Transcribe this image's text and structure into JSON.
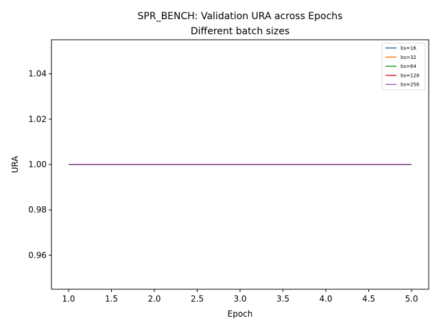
{
  "chart_data": {
    "type": "line",
    "title": "SPR_BENCH: Validation URA across Epochs",
    "subtitle": "Different batch sizes",
    "xlabel": "Epoch",
    "ylabel": "URA",
    "xlim": [
      0.8,
      5.2
    ],
    "ylim": [
      0.945,
      1.055
    ],
    "xticks": [
      1.0,
      1.5,
      2.0,
      2.5,
      3.0,
      3.5,
      4.0,
      4.5,
      5.0
    ],
    "xtick_labels": [
      "1.0",
      "1.5",
      "2.0",
      "2.5",
      "3.0",
      "3.5",
      "4.0",
      "4.5",
      "5.0"
    ],
    "yticks": [
      0.96,
      0.98,
      1.0,
      1.02,
      1.04
    ],
    "ytick_labels": [
      "0.96",
      "0.98",
      "1.00",
      "1.02",
      "1.04"
    ],
    "grid": false,
    "legend_position": "top-right",
    "x": [
      1,
      2,
      3,
      4,
      5
    ],
    "series": [
      {
        "name": "bs=16",
        "color": "#1f77b4",
        "values": [
          1.0,
          1.0,
          1.0,
          1.0,
          1.0
        ]
      },
      {
        "name": "bs=32",
        "color": "#ff7f0e",
        "values": [
          1.0,
          1.0,
          1.0,
          1.0,
          1.0
        ]
      },
      {
        "name": "bs=64",
        "color": "#2ca02c",
        "values": [
          1.0,
          1.0,
          1.0,
          1.0,
          1.0
        ]
      },
      {
        "name": "bs=128",
        "color": "#d62728",
        "values": [
          1.0,
          1.0,
          1.0,
          1.0,
          1.0
        ]
      },
      {
        "name": "bs=256",
        "color": "#9467bd",
        "values": [
          1.0,
          1.0,
          1.0,
          1.0,
          1.0
        ]
      }
    ]
  }
}
